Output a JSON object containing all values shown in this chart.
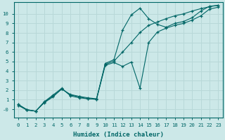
{
  "title": "",
  "xlabel": "Humidex (Indice chaleur)",
  "ylabel": "",
  "background_color": "#cce8e8",
  "grid_color": "#b8d8d8",
  "line_color": "#006666",
  "xlim": [
    -0.5,
    23.5
  ],
  "ylim": [
    -0.9,
    11.2
  ],
  "xticks": [
    0,
    1,
    2,
    3,
    4,
    5,
    6,
    7,
    8,
    9,
    10,
    11,
    12,
    13,
    14,
    15,
    16,
    17,
    18,
    19,
    20,
    21,
    22,
    23
  ],
  "yticks": [
    0,
    1,
    2,
    3,
    4,
    5,
    6,
    7,
    8,
    9,
    10
  ],
  "ytick_labels": [
    "-0",
    "1",
    "2",
    "3",
    "4",
    "5",
    "6",
    "7",
    "8",
    "9",
    "10"
  ],
  "line1_y": [
    0.5,
    -0.05,
    -0.2,
    0.8,
    1.5,
    2.2,
    1.4,
    1.2,
    1.1,
    1.05,
    4.8,
    5.2,
    8.3,
    9.9,
    10.6,
    9.5,
    8.9,
    8.6,
    9.0,
    9.2,
    9.6,
    10.3,
    10.8,
    10.9
  ],
  "line2_y": [
    0.5,
    -0.05,
    -0.2,
    0.7,
    1.3,
    2.15,
    1.5,
    1.3,
    1.1,
    1.05,
    4.6,
    4.9,
    4.5,
    4.95,
    2.2,
    7.0,
    8.1,
    8.5,
    8.8,
    9.0,
    9.35,
    9.8,
    10.5,
    10.7
  ],
  "line3_y": [
    0.4,
    -0.1,
    -0.2,
    0.75,
    1.4,
    2.1,
    1.55,
    1.35,
    1.2,
    1.1,
    4.7,
    5.05,
    6.0,
    7.0,
    8.05,
    8.8,
    9.15,
    9.5,
    9.8,
    10.0,
    10.3,
    10.55,
    10.75,
    10.9
  ]
}
